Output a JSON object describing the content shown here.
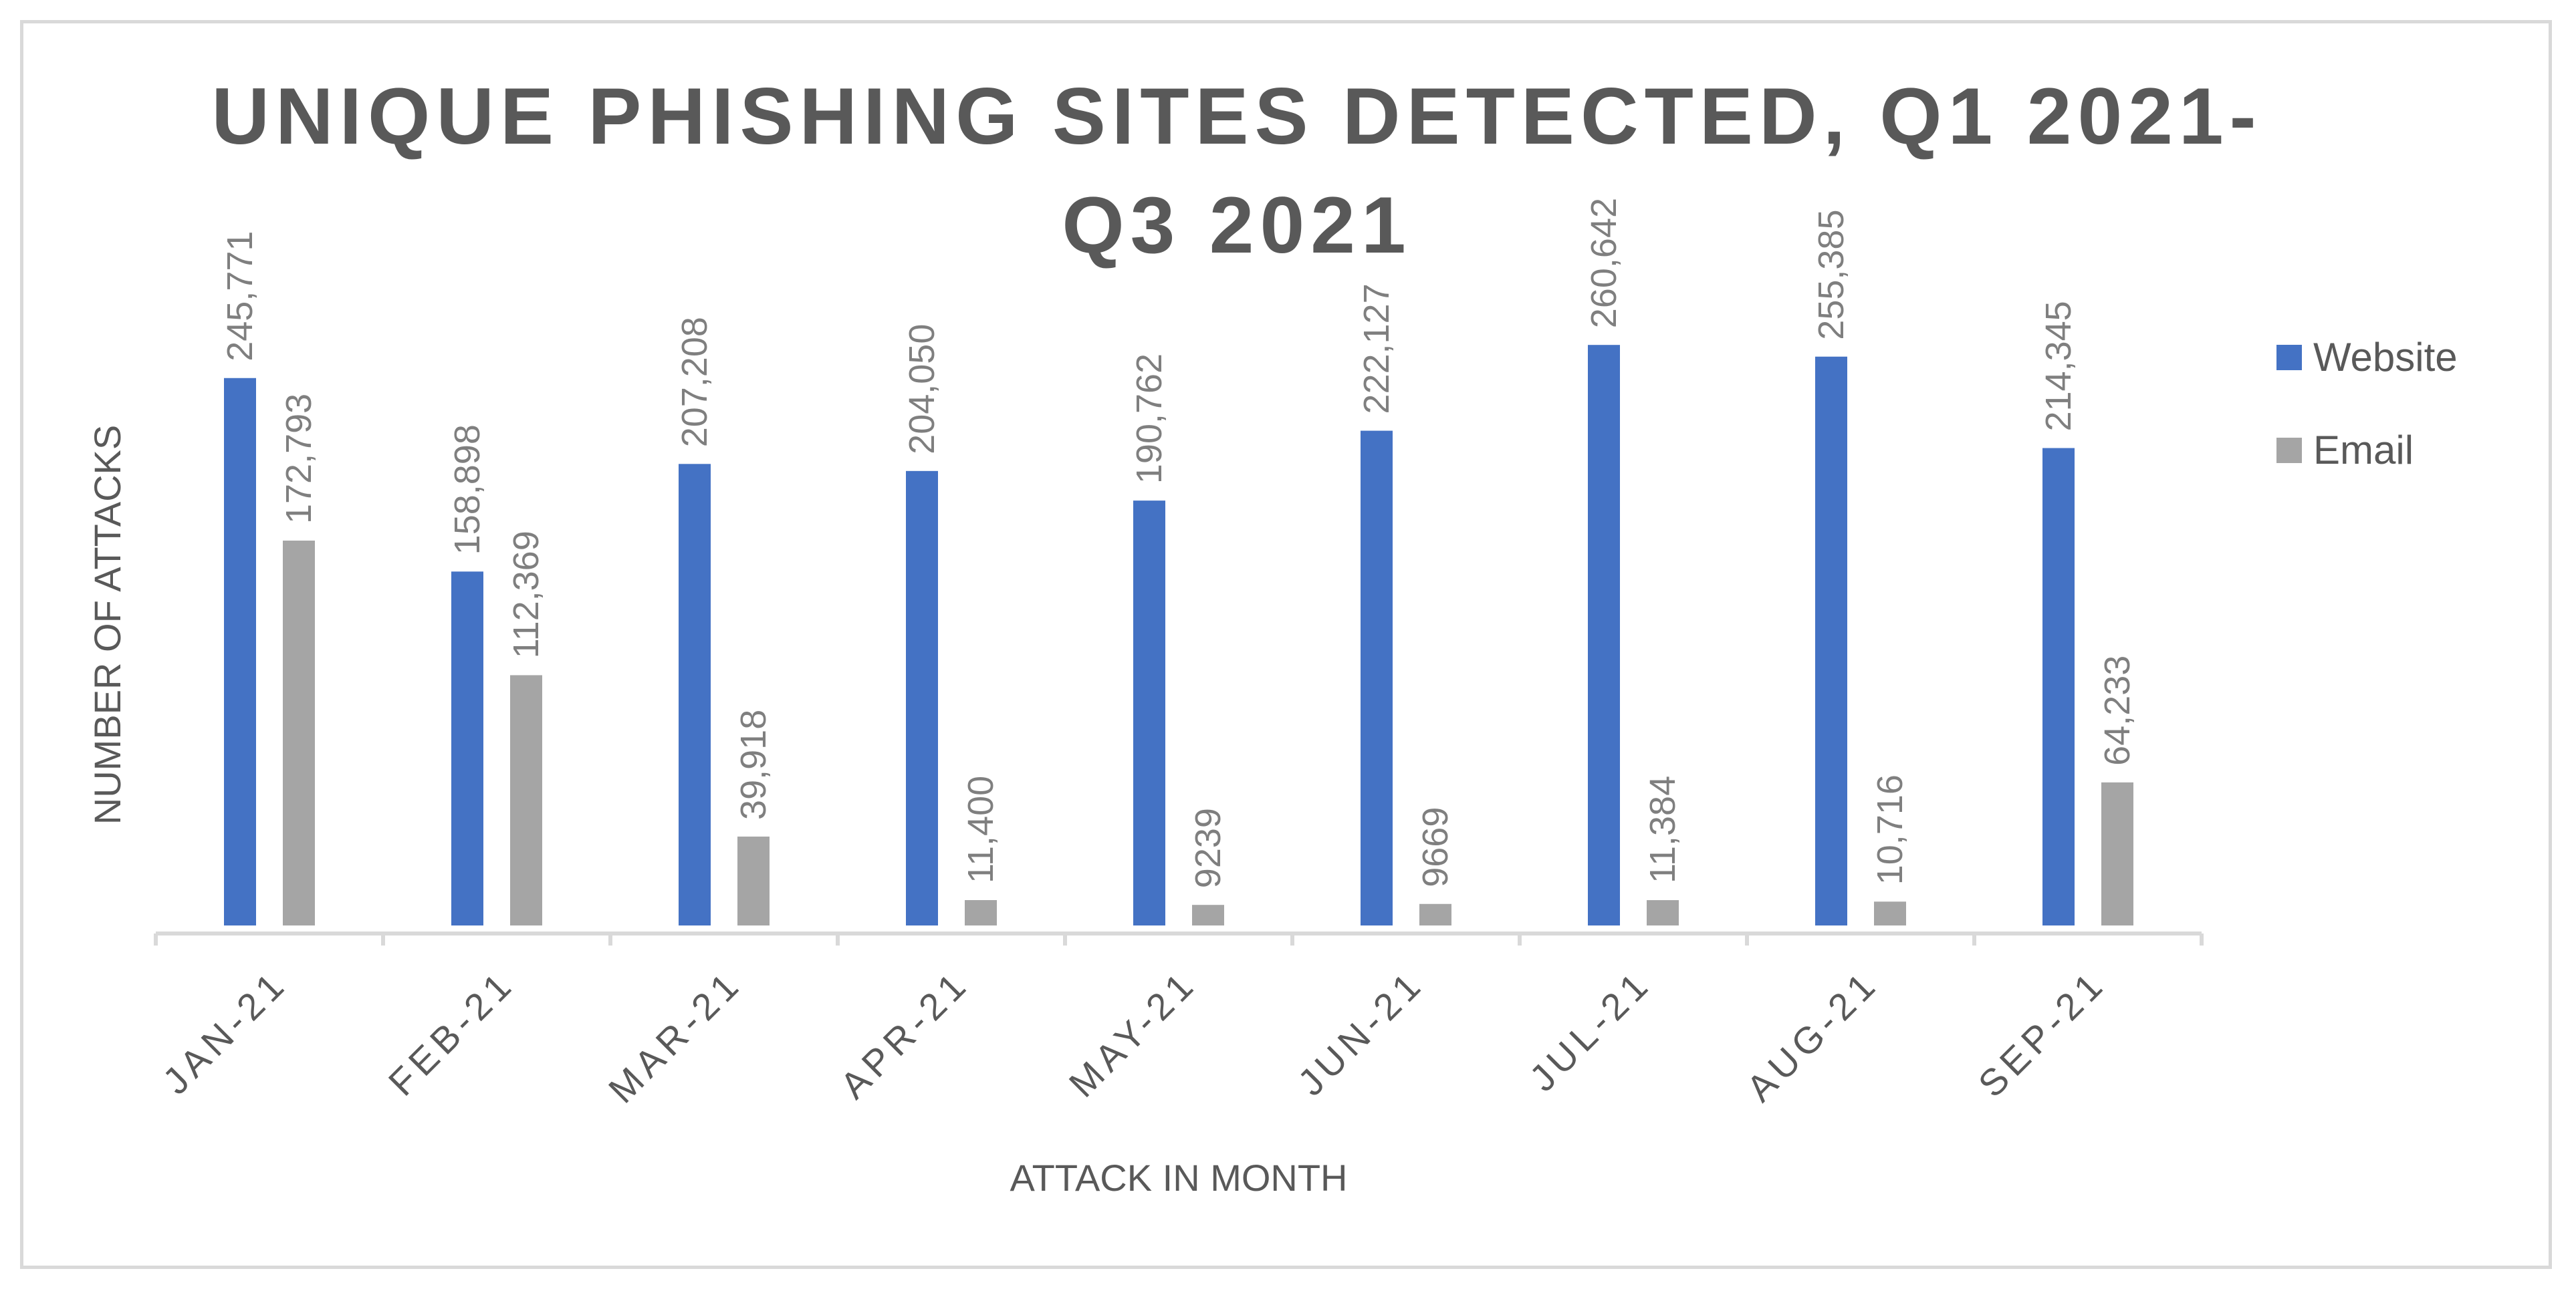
{
  "chart_data": {
    "type": "bar",
    "title_lines": [
      "UNIQUE PHISHING SITES DETECTED, Q1 2021-",
      "Q3 2021"
    ],
    "xlabel": "ATTACK IN MONTH",
    "ylabel": "NUMBER OF ATTACKS",
    "categories": [
      "JAN-21",
      "FEB-21",
      "MAR-21",
      "APR-21",
      "MAY-21",
      "JUN-21",
      "JUL-21",
      "AUG-21",
      "SEP-21"
    ],
    "series": [
      {
        "name": "Website",
        "color": "#4472c4",
        "values": [
          245771,
          158898,
          207208,
          204050,
          190762,
          222127,
          260642,
          255385,
          214345
        ],
        "labels": [
          "245,771",
          "158,898",
          "207,208",
          "204,050",
          "190,762",
          "222,127",
          "260,642",
          "255,385",
          "214,345"
        ]
      },
      {
        "name": "Email",
        "color": "#a5a5a5",
        "values": [
          172793,
          112369,
          39918,
          11400,
          9239,
          9669,
          11384,
          10716,
          64233
        ],
        "labels": [
          "172,793",
          "112,369",
          "39,918",
          "11,400",
          "9239",
          "9669",
          "11,384",
          "10,716",
          "64,233"
        ]
      }
    ],
    "ylim": [
      0,
      300000
    ],
    "grid": false,
    "legend_position": "right"
  }
}
